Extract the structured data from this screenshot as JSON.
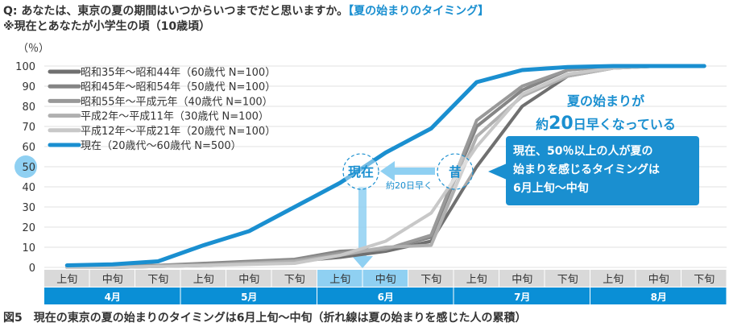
{
  "header": {
    "question": "Q: あなたは、東京の夏の期間はいつからいつまでだと思いますか。",
    "question_tag": "【夏の始まりのタイミング】",
    "note": "※現在とあなたが小学生の頃（10歳頃）"
  },
  "caption": "図5　現在の東京の夏の始まりのタイミングは6月上旬～中旬（折れ線は夏の始まりを感じた人の累積）",
  "annotations": {
    "genzai": "現在",
    "mukashi": "昔",
    "arrow_label": "約20日早く",
    "headline1": "夏の始まりが",
    "headline2_pre": "約",
    "headline2_num": "20",
    "headline2_post": "日早くなっている",
    "callout_lines": [
      "現在、50％以上の人が夏の",
      "始まりを感じるタイミングは",
      "6月上旬～中旬"
    ]
  },
  "colors": {
    "accent": "#1a8fd0",
    "highlight": "#8fd0f2",
    "month_bar": "#0a8fd6",
    "sub_bar": "#d9d9d9"
  },
  "chart_data": {
    "type": "line",
    "ylabel": "（％）",
    "ylim": [
      0,
      100
    ],
    "yticks": [
      0,
      10,
      20,
      30,
      40,
      50,
      60,
      70,
      80,
      90,
      100
    ],
    "highlight_ytick": 50,
    "grid": true,
    "legend_placement": "top-left",
    "months": [
      "4月",
      "5月",
      "6月",
      "7月",
      "8月"
    ],
    "categories": [
      "上旬",
      "中旬",
      "下旬",
      "上旬",
      "中旬",
      "下旬",
      "上旬",
      "中旬",
      "下旬",
      "上旬",
      "中旬",
      "下旬",
      "上旬",
      "中旬",
      "下旬"
    ],
    "highlight_categories": [
      6,
      7
    ],
    "series": [
      {
        "name": "昭和35年～昭和44年（60歳代 N=100）",
        "color": "#707070",
        "values": [
          0,
          0,
          0.5,
          1,
          2,
          3,
          5,
          8,
          13,
          50,
          80,
          95,
          99,
          100,
          100
        ]
      },
      {
        "name": "昭和45年～昭和54年（50歳代 N=100）",
        "color": "#858585",
        "values": [
          0,
          0.5,
          1,
          2,
          3,
          4,
          8,
          9,
          15,
          70,
          88,
          98,
          100,
          100,
          100
        ]
      },
      {
        "name": "昭和55年～平成元年（40歳代 N=100）",
        "color": "#999999",
        "values": [
          0,
          0.5,
          1,
          1.5,
          2.5,
          3.5,
          7,
          9,
          16,
          73,
          90,
          98,
          100,
          100,
          100
        ]
      },
      {
        "name": "平成2年～平成11年（30歳代 N=100）",
        "color": "#b0b0b0",
        "values": [
          0,
          0,
          0.5,
          1,
          2,
          3,
          6,
          10,
          11,
          65,
          85,
          95,
          99,
          100,
          100
        ]
      },
      {
        "name": "平成12年～平成21年（20歳代 N=100）",
        "color": "#c8c8c8",
        "values": [
          0,
          0,
          0.5,
          1,
          1.5,
          2,
          6,
          13,
          27,
          60,
          86,
          96,
          99,
          100,
          100
        ]
      },
      {
        "name": "現在（20歳代～60歳代 N=500）",
        "color": "#1a8fd0",
        "values": [
          1,
          1.5,
          3,
          11,
          18,
          30,
          42,
          57,
          69,
          92,
          98,
          99.5,
          100,
          100,
          100
        ]
      }
    ]
  }
}
